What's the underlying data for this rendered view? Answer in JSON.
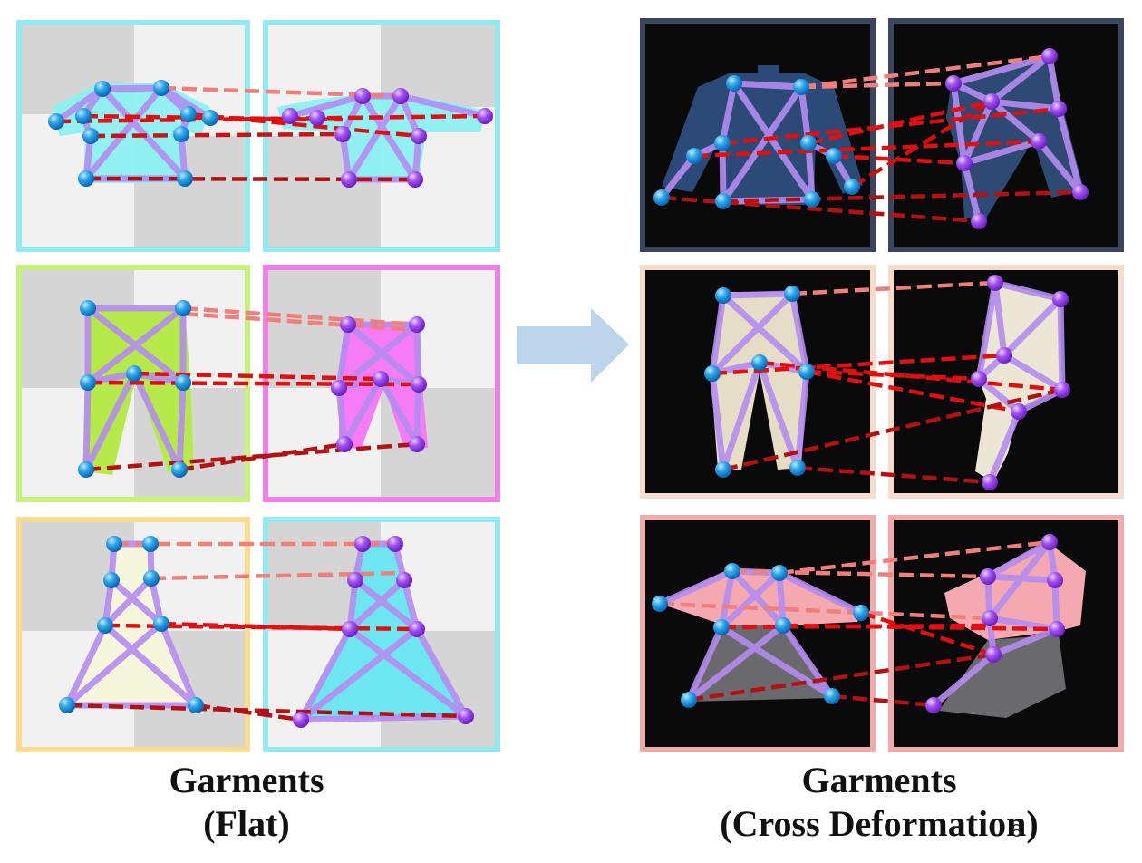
{
  "captions": {
    "left_line1": "Garments",
    "left_line2": "(Flat)",
    "right_line1": "Garments",
    "right_line2": "(Cross Deformation)"
  },
  "page_number": "8",
  "colors": {
    "arrow": "#bcd5ea",
    "keypoint_blue": "#1e9be6",
    "keypoint_purple": "#9b45f0",
    "skeleton_lavender": "#b48cf0",
    "match_light": "#f07f7a",
    "match_red": "#e01010",
    "match_dark": "#b41212",
    "frame_row1_flat": "#8feaf2",
    "frame_row2_flat_left": "#c6f27a",
    "frame_row2_flat_right": "#f47ee8",
    "frame_row3_flat_left": "#fbdc8c",
    "frame_row3_flat_right": "#8feaf2",
    "frame_row1_deform": "#3a4560",
    "frame_row2_deform": "#f6dccb",
    "frame_row3_deform": "#f1aaaa"
  },
  "panels": [
    {
      "id": "flat-shirt-a",
      "garment": "shirt",
      "style": "flat",
      "frame": "#8feaf2",
      "fill": "#8cf0f2"
    },
    {
      "id": "flat-shirt-b",
      "garment": "shirt",
      "style": "flat",
      "frame": "#8feaf2",
      "fill": "#8cf0f2"
    },
    {
      "id": "flat-pants-a",
      "garment": "pants",
      "style": "flat",
      "frame": "#c6f27a",
      "fill": "#b6ea4a"
    },
    {
      "id": "flat-pants-b",
      "garment": "pants",
      "style": "flat",
      "frame": "#f47ee8",
      "fill": "#f57cf5"
    },
    {
      "id": "flat-dress-a",
      "garment": "dress",
      "style": "flat",
      "frame": "#fbdc8c",
      "fill": "#f6f6dc"
    },
    {
      "id": "flat-dress-b",
      "garment": "dress",
      "style": "flat",
      "frame": "#8feaf2",
      "fill": "#6ee6f2"
    },
    {
      "id": "deform-jacket-a",
      "garment": "jacket",
      "style": "deform",
      "frame": "#3a4560",
      "fill": "#2b4a78"
    },
    {
      "id": "deform-jacket-b",
      "garment": "jacket",
      "style": "deform",
      "frame": "#3a4560",
      "fill": "#2e4a74"
    },
    {
      "id": "deform-pants-a",
      "garment": "pants",
      "style": "deform",
      "frame": "#f6dccb",
      "fill": "#e6ddc6"
    },
    {
      "id": "deform-pants-b",
      "garment": "pants",
      "style": "deform",
      "frame": "#f6dccb",
      "fill": "#ece6d4"
    },
    {
      "id": "deform-dress-a",
      "garment": "dress",
      "style": "deform",
      "frame": "#f1aaaa",
      "fill": "#f4a8b0"
    },
    {
      "id": "deform-dress-b",
      "garment": "dress",
      "style": "deform",
      "frame": "#f1aaaa",
      "fill": "#f4a8b0"
    }
  ]
}
